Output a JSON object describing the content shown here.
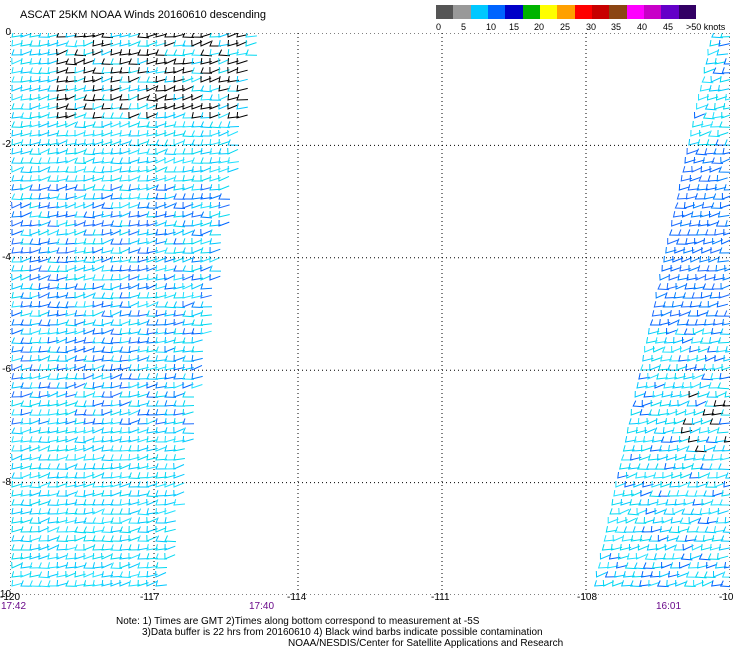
{
  "title": "ASCAT 25KM NOAA Winds 20160610 descending",
  "scale": {
    "colors": [
      "#555555",
      "#999999",
      "#00c8ff",
      "#0064ff",
      "#0000c8",
      "#00b400",
      "#ffff00",
      "#ffa000",
      "#ff0000",
      "#c80000",
      "#8b4513",
      "#ff00ff",
      "#c800c8",
      "#6400c8",
      "#320064"
    ],
    "labels": [
      "0",
      "5",
      "10",
      "15",
      "20",
      "25",
      "30",
      "35",
      "40",
      "45"
    ],
    "last_label": ">50 knots"
  },
  "axes": {
    "y_ticks": [
      "0",
      "-2",
      "-4",
      "-6",
      "-8",
      "-10"
    ],
    "x_ticks": [
      "-120",
      "-117",
      "-114",
      "-111",
      "-108",
      "-10"
    ]
  },
  "times": {
    "t1": "17:42",
    "t2": "17:40",
    "t3": "16:01"
  },
  "notes": {
    "line1": "Note: 1) Times are GMT 2)Times along bottom correspond to measurement at -5S",
    "line2": "3)Data buffer is 22 hrs from 20160610 4) Black wind barbs indicate possible contamination",
    "line3": "NOAA/NESDIS/Center for Satellite Applications and Research"
  },
  "map_data": {
    "lon_range": [
      -120,
      -105
    ],
    "lat_range": [
      -10,
      0
    ],
    "swaths": [
      {
        "name": "west",
        "time": "17:42",
        "lon_west_top": -120,
        "lon_east_top": -114.9,
        "lon_west_bottom": -120,
        "lon_east_bottom": -116.8
      },
      {
        "name": "east",
        "time": "16:01",
        "lon_west_top": -105.4,
        "lon_east_top": -105,
        "lon_west_bottom": -107.9,
        "lon_east_bottom": -105
      }
    ]
  }
}
